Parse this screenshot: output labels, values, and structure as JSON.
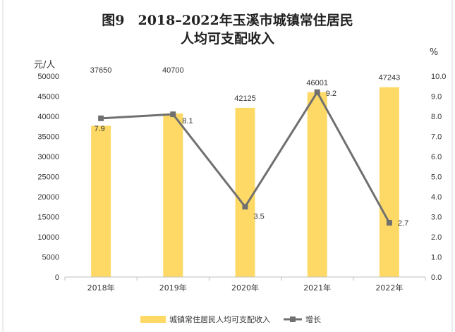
{
  "chart_data": {
    "type": "bar+line",
    "title": "图9　2018–2022年玉溪市城镇常住居民人均可支配收入",
    "title_lines": [
      "图9　2018–2022年玉溪市城镇常住居民",
      "人均可支配收入"
    ],
    "categories": [
      "2018年",
      "2019年",
      "2020年",
      "2021年",
      "2022年"
    ],
    "series": [
      {
        "name": "城镇常住居民人均可支配收入",
        "type": "bar",
        "axis": "left",
        "values": [
          37650,
          40700,
          42125,
          46001,
          47243
        ],
        "labels": [
          "37650",
          "40700",
          "42125",
          "46001",
          "47243"
        ],
        "color": "#FFD966"
      },
      {
        "name": "增长",
        "type": "line",
        "axis": "right",
        "values": [
          7.9,
          8.1,
          3.5,
          9.2,
          2.7
        ],
        "labels": [
          "7.9",
          "8.1",
          "3.5",
          "9.2",
          "2.7"
        ],
        "color": "#707070"
      }
    ],
    "y_left": {
      "unit": "元/人",
      "ylim": [
        0,
        50000
      ],
      "ticks": [
        0,
        5000,
        10000,
        15000,
        20000,
        25000,
        30000,
        35000,
        40000,
        45000,
        50000
      ],
      "tick_labels": [
        "0",
        "5000",
        "10000",
        "15000",
        "20000",
        "25000",
        "30000",
        "35000",
        "40000",
        "45000",
        "50000"
      ]
    },
    "y_right": {
      "unit": "%",
      "ylim": [
        0,
        10
      ],
      "ticks": [
        0,
        1,
        2,
        3,
        4,
        5,
        6,
        7,
        8,
        9,
        10
      ],
      "tick_labels": [
        "0.0",
        "1.0",
        "2.0",
        "3.0",
        "4.0",
        "5.0",
        "6.0",
        "7.0",
        "8.0",
        "9.0",
        "10.0"
      ]
    },
    "grid": false,
    "legend": "bottom"
  },
  "colors": {
    "bar": "#FFD966",
    "line": "#707070",
    "axis": "#BFBFBF",
    "border": "#D9D9D9"
  }
}
